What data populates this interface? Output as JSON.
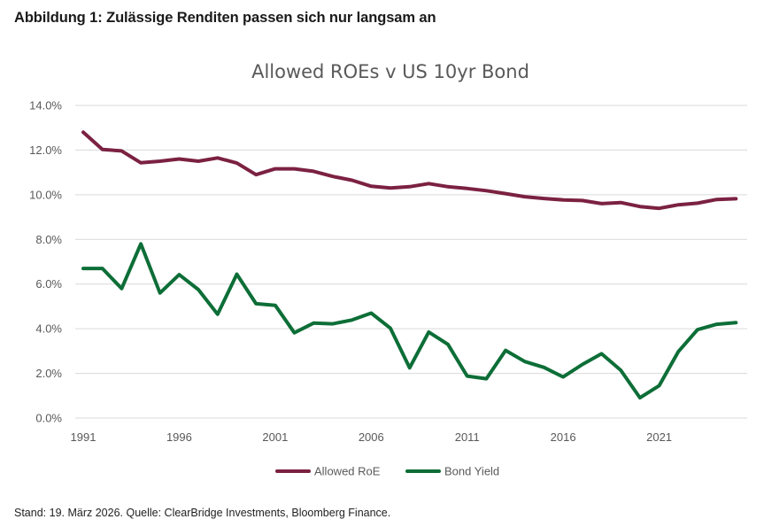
{
  "heading": "Abbildung 1: Zulässige Renditen passen sich nur langsam an",
  "footer": "Stand: 19. März 2026. Quelle: ClearBridge Investments, Bloomberg Finance.",
  "chart_data": {
    "type": "line",
    "title": "Allowed ROEs v US 10yr Bond",
    "xlabel": "",
    "ylabel": "",
    "x": [
      1991,
      1992,
      1993,
      1994,
      1995,
      1996,
      1997,
      1998,
      1999,
      2000,
      2001,
      2002,
      2003,
      2004,
      2005,
      2006,
      2007,
      2008,
      2009,
      2010,
      2011,
      2012,
      2013,
      2014,
      2015,
      2016,
      2017,
      2018,
      2019,
      2020,
      2021,
      2022,
      2023,
      2024,
      2025
    ],
    "xticks": [
      "1991",
      "1996",
      "2001",
      "2006",
      "2011",
      "2016",
      "2021"
    ],
    "yticks": [
      "0.0%",
      "2.0%",
      "4.0%",
      "6.0%",
      "8.0%",
      "10.0%",
      "12.0%",
      "14.0%"
    ],
    "ylim": [
      0,
      14
    ],
    "grid": true,
    "legend_position": "bottom",
    "series": [
      {
        "name": "Allowed RoE",
        "color": "#7b2141",
        "values": [
          12.8,
          12.03,
          11.96,
          11.43,
          11.5,
          11.6,
          11.5,
          11.65,
          11.42,
          10.9,
          11.16,
          11.16,
          11.05,
          10.82,
          10.65,
          10.38,
          10.3,
          10.36,
          10.5,
          10.36,
          10.28,
          10.18,
          10.05,
          9.91,
          9.83,
          9.77,
          9.74,
          9.6,
          9.65,
          9.47,
          9.39,
          9.55,
          9.62,
          9.79,
          9.82
        ]
      },
      {
        "name": "Bond Yield",
        "color": "#0d6e37",
        "values": [
          6.7,
          6.7,
          5.8,
          7.8,
          5.6,
          6.42,
          5.75,
          4.65,
          6.44,
          5.12,
          5.05,
          3.82,
          4.25,
          4.22,
          4.39,
          4.7,
          4.02,
          2.25,
          3.85,
          3.3,
          1.88,
          1.76,
          3.03,
          2.53,
          2.27,
          1.84,
          2.4,
          2.88,
          2.14,
          0.91,
          1.45,
          2.98,
          3.96,
          4.2,
          4.27
        ]
      }
    ]
  }
}
